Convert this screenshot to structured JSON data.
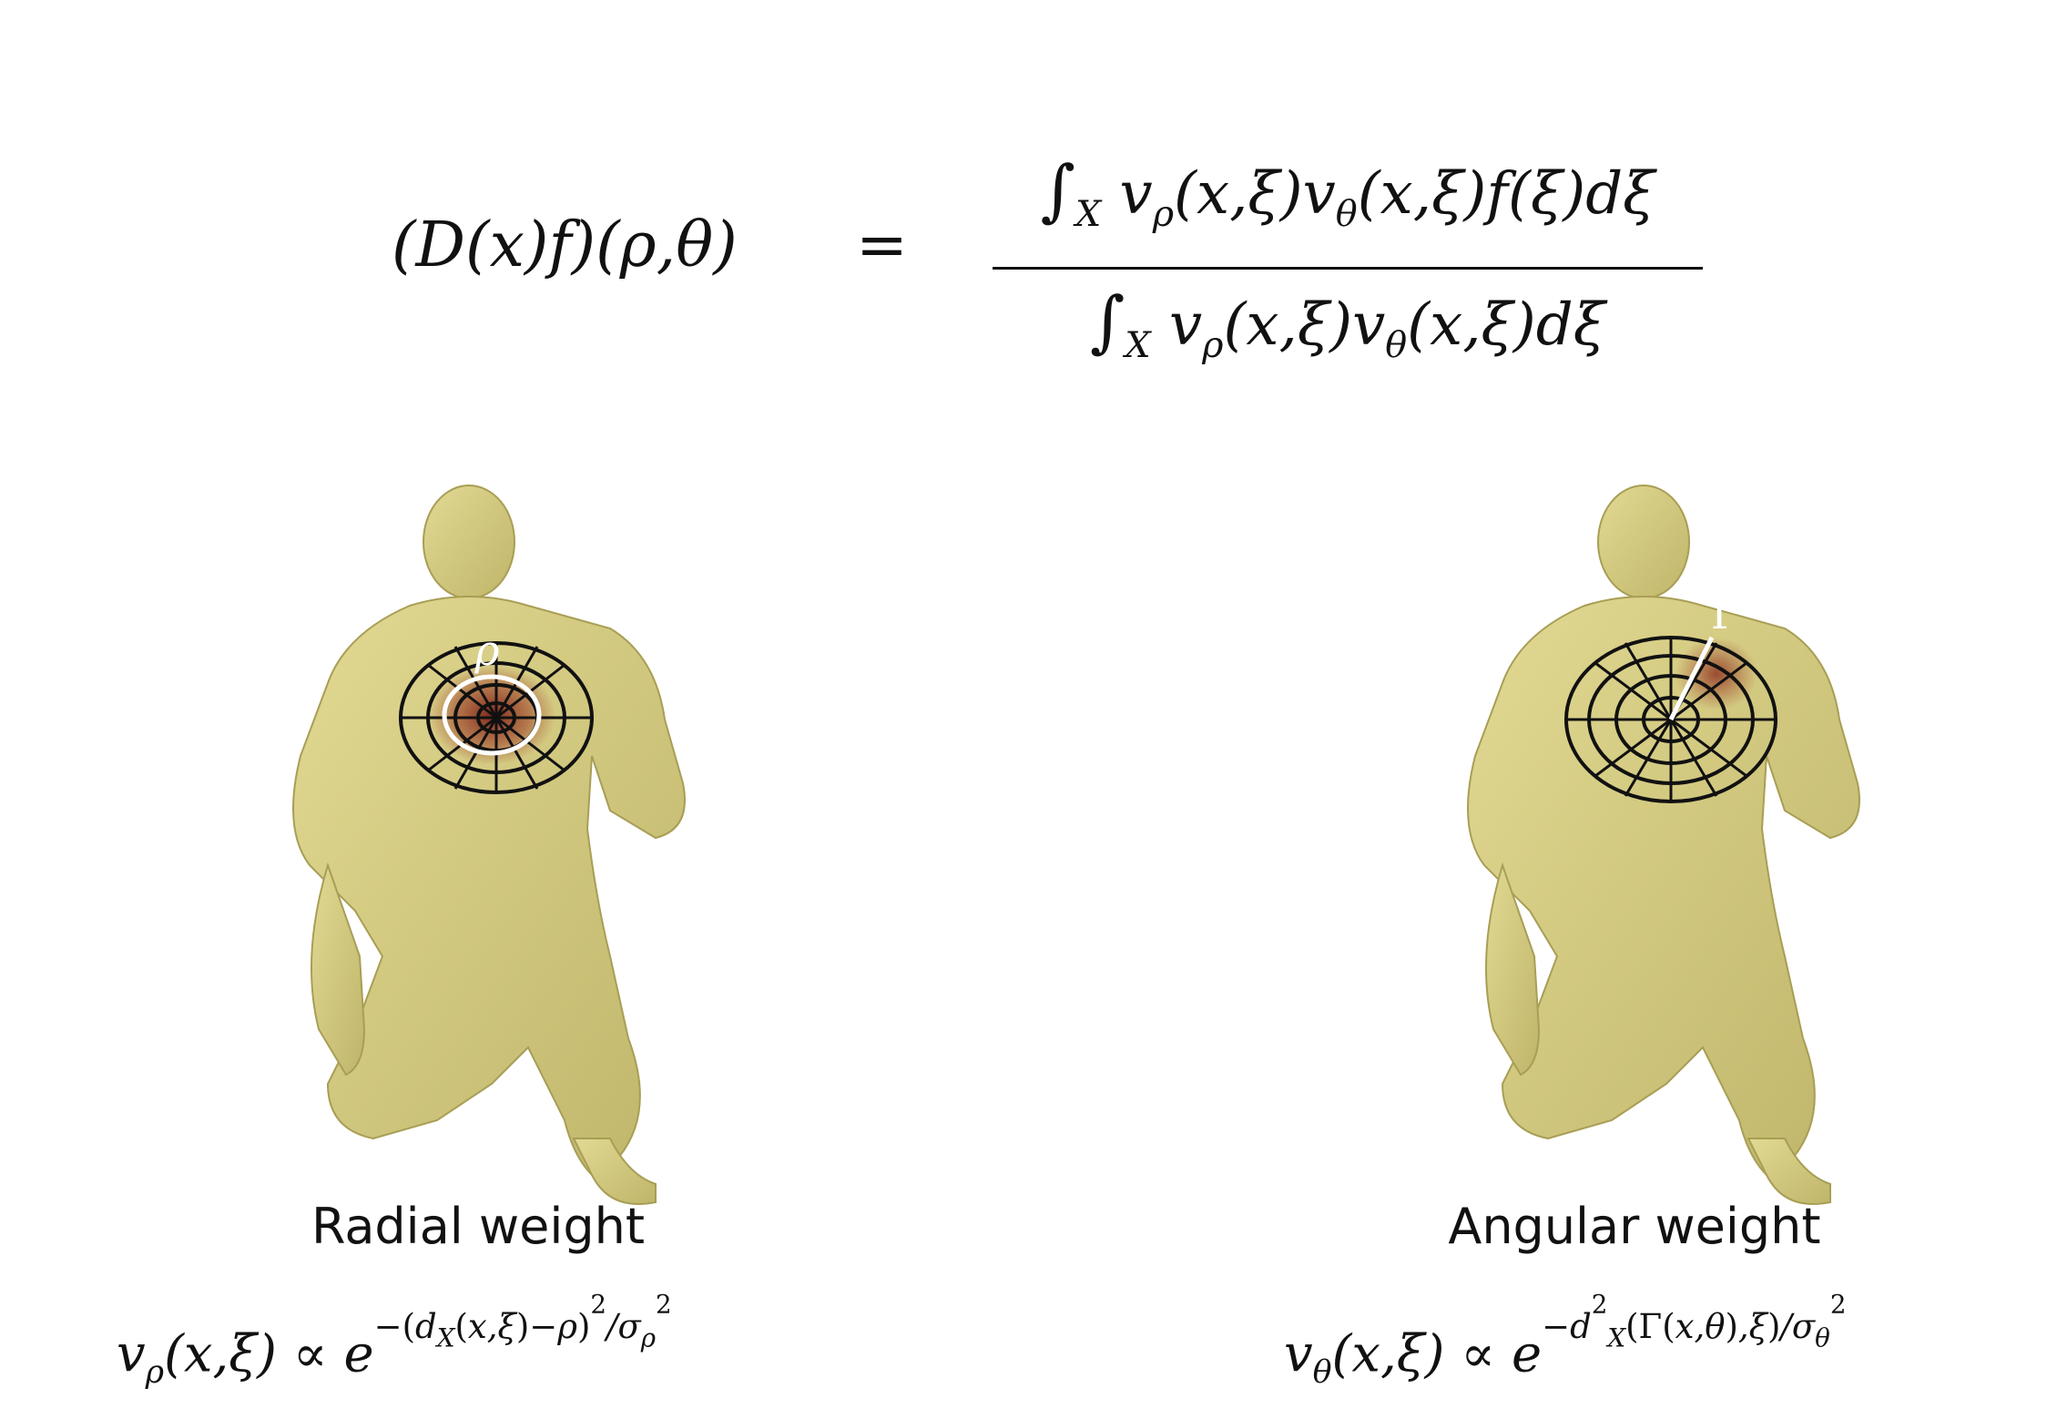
{
  "formula": {
    "lhs": "(D(x)f)(ρ,θ)",
    "equals": "=",
    "numerator_tail": "(x,ξ)f(ξ)dξ",
    "denominator_tail": "(x,ξ)dξ",
    "integral": "∫",
    "domain": "X"
  },
  "left_panel": {
    "caption": "Radial weight",
    "grid_label": "ρ",
    "equation": "v_ρ(x,ξ) ∝ e^{−(d_X(x,ξ)−ρ)^2/σ_ρ^2}"
  },
  "right_panel": {
    "caption": "Angular weight",
    "grid_label": "Γ",
    "equation": "v_θ(x,ξ) ∝ e^{−d_X^2(Γ(x,θ),ξ)/σ_θ^2}"
  },
  "colors": {
    "skin": "#d8cf88",
    "skin_shadow": "#b3a95d",
    "heat": "#8b2a1e",
    "grid": "#111111",
    "highlight": "#ffffff"
  }
}
